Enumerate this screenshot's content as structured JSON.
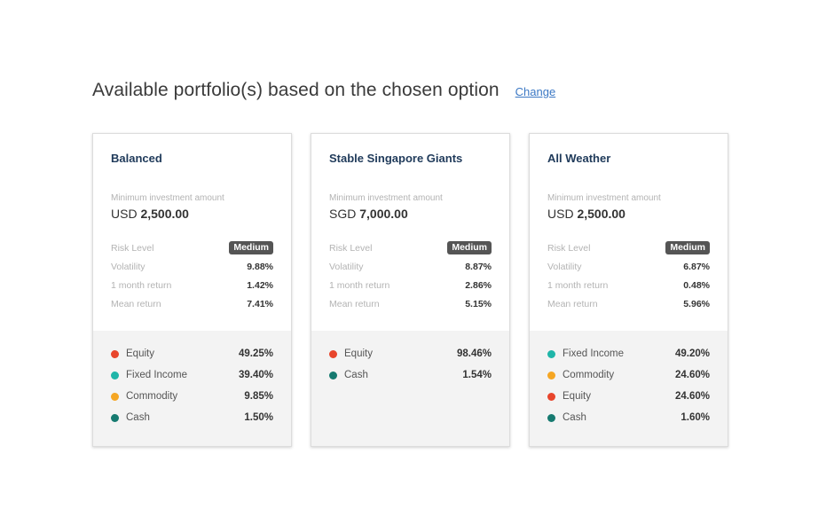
{
  "header": {
    "title": "Available portfolio(s) based on the chosen option",
    "change_label": "Change"
  },
  "labels": {
    "min_investment": "Minimum investment amount",
    "risk_level": "Risk Level",
    "volatility": "Volatility",
    "one_month_return": "1 month return",
    "mean_return": "Mean return"
  },
  "colors": {
    "equity": "#e8452c",
    "fixed_income": "#1fb5a8",
    "commodity": "#f5a623",
    "cash": "#167a70"
  },
  "cards": [
    {
      "name": "Balanced",
      "currency": "USD",
      "amount": "2,500.00",
      "risk_level": "Medium",
      "volatility": "9.88%",
      "one_month_return": "1.42%",
      "mean_return": "7.41%",
      "allocations": [
        {
          "label": "Equity",
          "value": "49.25%",
          "color": "#e8452c"
        },
        {
          "label": "Fixed Income",
          "value": "39.40%",
          "color": "#1fb5a8"
        },
        {
          "label": "Commodity",
          "value": "9.85%",
          "color": "#f5a623"
        },
        {
          "label": "Cash",
          "value": "1.50%",
          "color": "#167a70"
        }
      ]
    },
    {
      "name": "Stable Singapore Giants",
      "currency": "SGD",
      "amount": "7,000.00",
      "risk_level": "Medium",
      "volatility": "8.87%",
      "one_month_return": "2.86%",
      "mean_return": "5.15%",
      "allocations": [
        {
          "label": "Equity",
          "value": "98.46%",
          "color": "#e8452c"
        },
        {
          "label": "Cash",
          "value": "1.54%",
          "color": "#167a70"
        }
      ]
    },
    {
      "name": "All Weather",
      "currency": "USD",
      "amount": "2,500.00",
      "risk_level": "Medium",
      "volatility": "6.87%",
      "one_month_return": "0.48%",
      "mean_return": "5.96%",
      "allocations": [
        {
          "label": "Fixed Income",
          "value": "49.20%",
          "color": "#1fb5a8"
        },
        {
          "label": "Commodity",
          "value": "24.60%",
          "color": "#f5a623"
        },
        {
          "label": "Equity",
          "value": "24.60%",
          "color": "#e8452c"
        },
        {
          "label": "Cash",
          "value": "1.60%",
          "color": "#167a70"
        }
      ]
    }
  ]
}
